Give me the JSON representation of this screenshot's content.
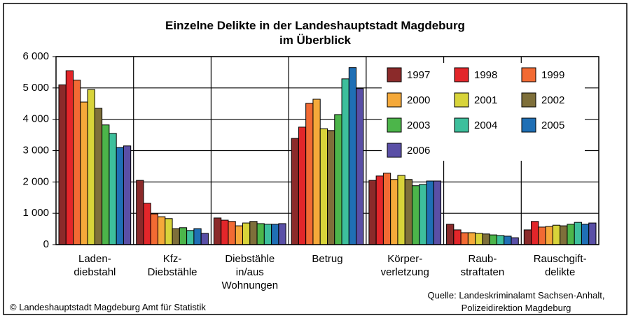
{
  "chart_data": {
    "type": "bar",
    "title": "Einzelne Delikte in der Landeshauptstadt Magdeburg\nim Überblick",
    "categories": [
      "Laden-\ndiebstahl",
      "Kfz-\nDiebstähle",
      "Diebstähle\nin/aus\nWohnungen",
      "Betrug",
      "Körper-\nverletzung",
      "Raub-\nstraftaten",
      "Rauschgift-\ndelikte"
    ],
    "series": [
      {
        "name": "1997",
        "color": "#8b2a2a",
        "values": [
          5100,
          2050,
          850,
          3390,
          2050,
          650,
          470
        ]
      },
      {
        "name": "1998",
        "color": "#e3262a",
        "values": [
          5550,
          1320,
          780,
          3750,
          2190,
          470,
          740
        ]
      },
      {
        "name": "1999",
        "color": "#f26a33",
        "values": [
          5250,
          980,
          740,
          4510,
          2280,
          380,
          560
        ]
      },
      {
        "name": "2000",
        "color": "#f5a93a",
        "values": [
          4550,
          890,
          600,
          4640,
          2080,
          380,
          580
        ]
      },
      {
        "name": "2001",
        "color": "#d8d43a",
        "values": [
          4950,
          830,
          690,
          3700,
          2210,
          360,
          620
        ]
      },
      {
        "name": "2002",
        "color": "#7e6f3a",
        "values": [
          4350,
          510,
          740,
          3640,
          2080,
          340,
          600
        ]
      },
      {
        "name": "2003",
        "color": "#4cb54a",
        "values": [
          3820,
          540,
          670,
          4150,
          1880,
          310,
          650
        ]
      },
      {
        "name": "2004",
        "color": "#3dbf9c",
        "values": [
          3550,
          450,
          650,
          5290,
          1920,
          290,
          710
        ]
      },
      {
        "name": "2005",
        "color": "#1f6fb5",
        "values": [
          3100,
          510,
          650,
          5650,
          2030,
          270,
          650
        ]
      },
      {
        "name": "2006",
        "color": "#5a4fa6",
        "values": [
          3150,
          360,
          670,
          4980,
          2030,
          220,
          690
        ]
      }
    ],
    "ylim": [
      0,
      6000
    ],
    "yticks": [
      0,
      {
        "value": 1000,
        "label": "1 000"
      },
      {
        "value": 2000,
        "label": "2 000"
      },
      {
        "value": 3000,
        "label": "3 000"
      },
      {
        "value": 4000,
        "label": "4 000"
      },
      {
        "value": 5000,
        "label": "5 000"
      },
      {
        "value": 6000,
        "label": "6 000"
      }
    ],
    "grid": true,
    "legend": "upper right",
    "footer_left": "© Landeshauptstadt Magdeburg  Amt für Statistik",
    "footer_right": "Quelle: Landeskriminalamt Sachsen-Anhalt,\nPolizeidirektion Magdeburg"
  }
}
